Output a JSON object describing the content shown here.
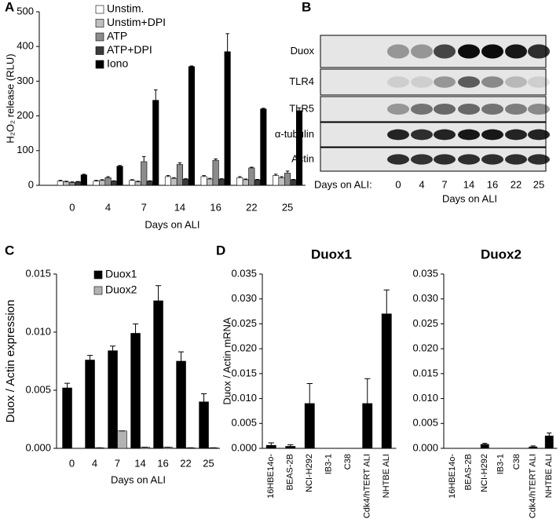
{
  "panel_labels": [
    "A",
    "B",
    "C",
    "D"
  ],
  "chart_data": [
    {
      "type": "bar",
      "ylabel": "H₂O₂ release (RLU)",
      "xlabel": "Days on ALI",
      "categories": [
        "0",
        "4",
        "7",
        "14",
        "16",
        "22",
        "25"
      ],
      "series": [
        {
          "name": "Unstim.",
          "color": "#ffffff",
          "values": [
            12,
            12,
            14,
            25,
            25,
            22,
            28
          ],
          "errors": [
            2,
            2,
            2,
            3,
            3,
            3,
            4
          ]
        },
        {
          "name": "Unstim+DPI",
          "color": "#bfbfbf",
          "values": [
            10,
            14,
            10,
            20,
            18,
            16,
            22
          ],
          "errors": [
            2,
            2,
            2,
            2,
            2,
            2,
            3
          ]
        },
        {
          "name": "ATP",
          "color": "#8c8c8c",
          "values": [
            8,
            22,
            68,
            60,
            72,
            50,
            35
          ],
          "errors": [
            2,
            3,
            15,
            5,
            4,
            2,
            6
          ]
        },
        {
          "name": "ATP+DPI",
          "color": "#3a3a3a",
          "values": [
            10,
            12,
            12,
            18,
            18,
            16,
            16
          ],
          "errors": [
            1,
            1,
            1,
            1,
            1,
            1,
            1
          ]
        },
        {
          "name": "Iono",
          "color": "#000000",
          "values": [
            30,
            55,
            245,
            342,
            385,
            220,
            215
          ],
          "errors": [
            2,
            2,
            30,
            2,
            52,
            2,
            8
          ]
        }
      ],
      "ylim": [
        0,
        500
      ],
      "yticks": [
        0,
        100,
        200,
        300,
        400,
        500
      ]
    },
    {
      "type": "bar",
      "ylabel": "Duox / Actin expression",
      "xlabel": "Days on ALI",
      "categories": [
        "0",
        "4",
        "7",
        "14",
        "16",
        "22",
        "25"
      ],
      "series": [
        {
          "name": "Duox1",
          "color": "#000000",
          "values": [
            0.0052,
            0.0076,
            0.0084,
            0.0099,
            0.0127,
            0.0075,
            0.004
          ],
          "errors": [
            0.0004,
            0.0004,
            0.0004,
            0.0008,
            0.0013,
            0.0008,
            0.0007
          ]
        },
        {
          "name": "Duox2",
          "color": "#b3b3b3",
          "values": [
            0,
            5e-05,
            0.0015,
            0.0001,
            0.0001,
            5e-05,
            5e-05
          ],
          "errors": [
            0,
            0,
            0,
            0,
            0,
            0,
            0
          ]
        }
      ],
      "ylim": [
        0,
        0.015
      ],
      "yticks": [
        {
          "value": 0,
          "label": "0.000"
        },
        {
          "value": 0.005,
          "label": "0.005"
        },
        {
          "value": 0.01,
          "label": "0.010"
        },
        {
          "value": 0.015,
          "label": "0.015"
        }
      ]
    },
    {
      "type": "bar",
      "title": "Duox1",
      "ylabel": "Duox / Actin mRNA",
      "categories": [
        "16HBE14o-",
        "BEAS-2B",
        "NCI-H292",
        "IB3-1",
        "C38",
        "Cdk4/hTERT ALI",
        "NHTBE ALI"
      ],
      "series": [
        {
          "color": "#000000",
          "values": [
            0.0006,
            0.0004,
            0.009,
            0,
            0,
            0.009,
            0.027
          ],
          "errors": [
            0.0005,
            0.0003,
            0.004,
            0,
            0,
            0.005,
            0.0048
          ]
        }
      ],
      "ylim": [
        0,
        0.035
      ],
      "yticks": [
        {
          "value": 0,
          "label": "0.000"
        },
        {
          "value": 0.005,
          "label": "0.005"
        },
        {
          "value": 0.01,
          "label": "0.010"
        },
        {
          "value": 0.015,
          "label": "0.015"
        },
        {
          "value": 0.02,
          "label": "0.020"
        },
        {
          "value": 0.025,
          "label": "0.025"
        },
        {
          "value": 0.03,
          "label": "0.030"
        },
        {
          "value": 0.035,
          "label": "0.035"
        }
      ]
    },
    {
      "type": "bar",
      "title": "Duox2",
      "categories": [
        "16HBE14o-",
        "BEAS-2B",
        "NCI-H292",
        "IB3-1",
        "C38",
        "Cdk4/hTERT ALI",
        "NHTBE ALI"
      ],
      "series": [
        {
          "color": "#000000",
          "values": [
            0,
            0,
            0.0008,
            0,
            0,
            0.0003,
            0.0025
          ],
          "errors": [
            0,
            0,
            0.0002,
            0,
            0,
            0.0002,
            0.0006
          ]
        }
      ],
      "ylim": [
        0,
        0.035
      ],
      "yticks": [
        {
          "value": 0,
          "label": "0.000"
        },
        {
          "value": 0.005,
          "label": "0.005"
        },
        {
          "value": 0.01,
          "label": "0.010"
        },
        {
          "value": 0.015,
          "label": "0.015"
        },
        {
          "value": 0.02,
          "label": "0.020"
        },
        {
          "value": 0.025,
          "label": "0.025"
        },
        {
          "value": 0.03,
          "label": "0.030"
        },
        {
          "value": 0.035,
          "label": "0.035"
        }
      ]
    }
  ],
  "blot": {
    "rows": [
      "Duox",
      "TLR4",
      "TLR5",
      "α-tubulin",
      "Actin"
    ],
    "lane_title": "Days on ALI:",
    "lanes": [
      "0",
      "4",
      "7",
      "14",
      "16",
      "22",
      "25"
    ],
    "xlabel": "Days on ALI"
  }
}
